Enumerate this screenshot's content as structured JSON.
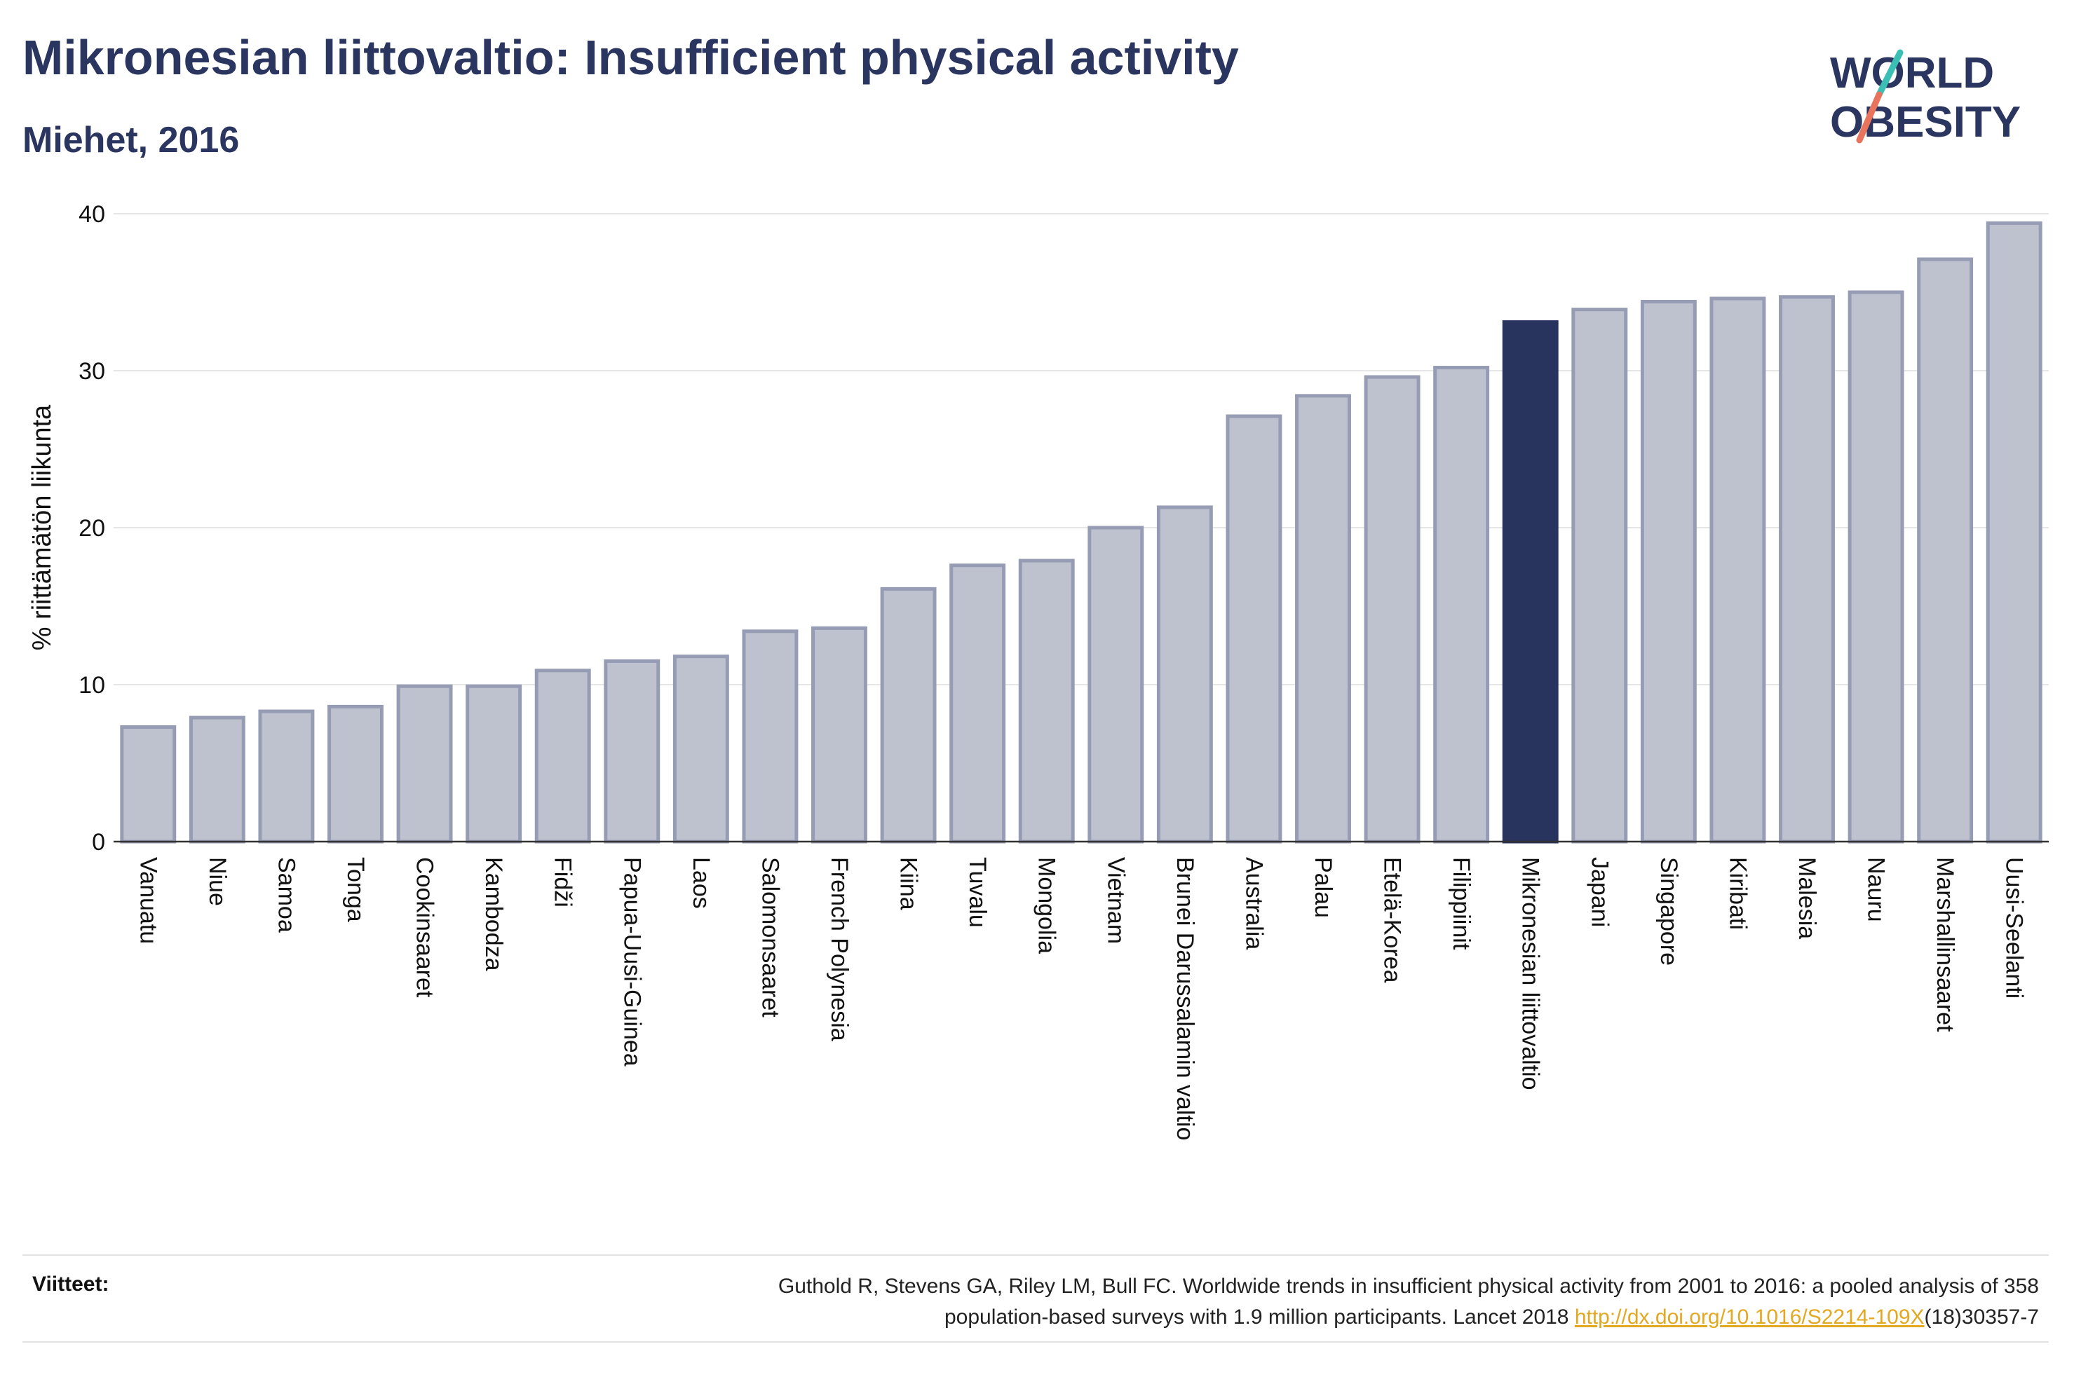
{
  "header": {
    "title": "Mikronesian liittovaltio: Insufficient physical activity",
    "subtitle": "Miehet, 2016"
  },
  "logo": {
    "line1": "WORLD",
    "line2": "OBESITY",
    "slash_colors": [
      "#3bbfb4",
      "#e8745e"
    ]
  },
  "chart_data": {
    "type": "bar",
    "ylabel": "% riittämätön liikunta",
    "ylim": [
      0,
      40
    ],
    "yticks": [
      "0",
      "10",
      "20",
      "30",
      "40"
    ],
    "grid": true,
    "highlight": "Mikronesian liittovaltio",
    "colors": {
      "bar": "#bec2cf",
      "bar_edge": "#979cb5",
      "highlight": "#28335e"
    },
    "categories": [
      "Vanuatu",
      "Niue",
      "Samoa",
      "Tonga",
      "Cookinsaaret",
      "Kambodza",
      "Fidži",
      "Papua-Uusi-Guinea",
      "Laos",
      "Salomonsaaret",
      "French Polynesia",
      "Kiina",
      "Tuvalu",
      "Mongolia",
      "Vietnam",
      "Brunei Darussalamin valtio",
      "Australia",
      "Palau",
      "Etelä-Korea",
      "Filippiinit",
      "Mikronesian liittovaltio",
      "Japani",
      "Singapore",
      "Kiribati",
      "Malesia",
      "Nauru",
      "Marshallinsaaret",
      "Uusi-Seelanti"
    ],
    "values": [
      7.3,
      7.9,
      8.3,
      8.6,
      9.9,
      9.9,
      10.9,
      11.5,
      11.8,
      13.4,
      13.6,
      16.1,
      17.6,
      17.9,
      20.0,
      21.3,
      27.1,
      28.4,
      29.6,
      30.2,
      33.1,
      33.9,
      34.4,
      34.6,
      34.7,
      35.0,
      37.1,
      39.4
    ]
  },
  "references": {
    "label": "Viitteet:",
    "text_part1": "Guthold R, Stevens GA, Riley LM, Bull FC. Worldwide trends in insufficient physical activity from 2001 to 2016: a pooled analysis of 358",
    "text_part2": "population-based surveys with 1.9 million participants. Lancet 2018 ",
    "link": "http://dx.doi.org/10.1016/S2214-109X",
    "text_part3": "(18)30357-7"
  }
}
